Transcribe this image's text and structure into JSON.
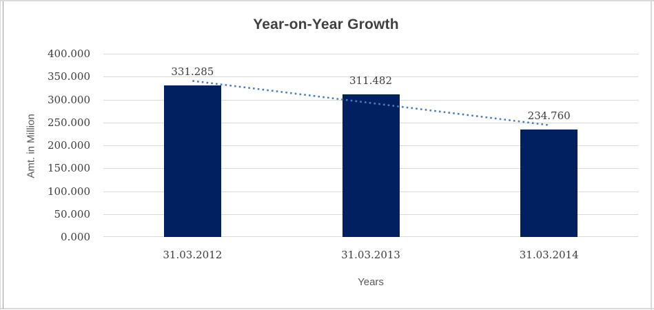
{
  "chart_data": {
    "type": "bar",
    "title": "Year-on-Year Growth",
    "categories": [
      "31.03.2012",
      "31.03.2013",
      "31.03.2014"
    ],
    "values": [
      331.285,
      311.482,
      234.76
    ],
    "value_labels": [
      "331.285",
      "311.482",
      "234.760"
    ],
    "xlabel": "Years",
    "ylabel": "Amt. in Million",
    "ylim": [
      0,
      400
    ],
    "ytick_step": 50,
    "ytick_labels": [
      "400.000",
      "350.000",
      "300.000",
      "250.000",
      "200.000",
      "150.000",
      "100.000",
      "50.000",
      "0.000"
    ],
    "grid": true,
    "legend": "none",
    "bar_color": "#002060",
    "gridline_color": "#d9d9d9",
    "trendline": {
      "type": "linear",
      "style": "dotted",
      "color": "#4a7ebb"
    }
  }
}
